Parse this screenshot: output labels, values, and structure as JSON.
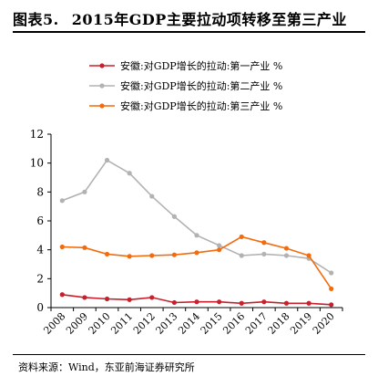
{
  "header": {
    "figure_number": "图表5.",
    "title": "2015年GDP主要拉动项转移至第三产业"
  },
  "footer": {
    "source": "资料来源：Wind，东亚前海证券研究所"
  },
  "chart_data": {
    "type": "line",
    "categories": [
      "2008",
      "2009",
      "2010",
      "2011",
      "2012",
      "2013",
      "2014",
      "2015",
      "2016",
      "2017",
      "2018",
      "2019",
      "2020"
    ],
    "ylim": [
      0,
      12
    ],
    "yticks": [
      "0",
      "2",
      "4",
      "6",
      "8",
      "10",
      "12"
    ],
    "grid": false,
    "legend_position": "top-left",
    "series": [
      {
        "name": "安徽:对GDP增长的拉动:第一产业 %",
        "color": "#c8202c",
        "values": [
          0.9,
          0.7,
          0.6,
          0.55,
          0.7,
          0.35,
          0.4,
          0.4,
          0.3,
          0.4,
          0.3,
          0.3,
          0.2
        ]
      },
      {
        "name": "安徽:对GDP增长的拉动:第二产业 %",
        "color": "#b2b2b2",
        "values": [
          7.4,
          8.0,
          10.2,
          9.3,
          7.7,
          6.3,
          5.0,
          4.3,
          3.6,
          3.7,
          3.6,
          3.4,
          2.4
        ]
      },
      {
        "name": "安徽:对GDP增长的拉动:第三产业 %",
        "color": "#f26c0d",
        "values": [
          4.2,
          4.15,
          3.7,
          3.55,
          3.6,
          3.65,
          3.8,
          4.0,
          4.9,
          4.5,
          4.1,
          3.6,
          1.3
        ]
      }
    ]
  }
}
